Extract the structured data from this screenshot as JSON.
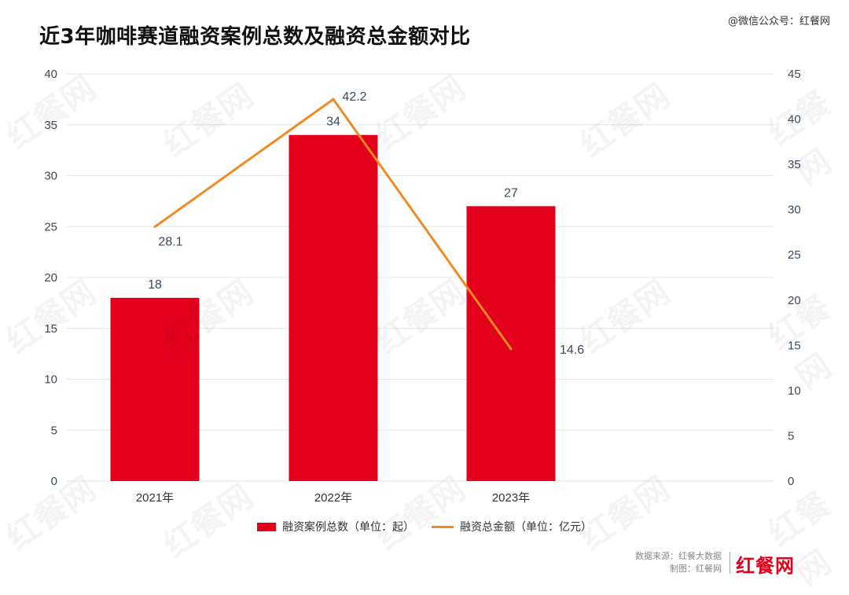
{
  "header": {
    "title": "近3年咖啡赛道融资案例总数及融资总金额对比",
    "source_tag": "@微信公众号：红餐网"
  },
  "footer": {
    "data_source": "数据来源：红餐大数据",
    "made_by": "制图：红餐网",
    "logo_text": "红餐网"
  },
  "watermark_text": "红餐网",
  "colors": {
    "bar": "#e3001b",
    "line": "#f08a24",
    "grid": "#e6e6e6",
    "axis_text": "#3a4a5c"
  },
  "chart_data": {
    "type": "bar",
    "title": "近3年咖啡赛道融资案例总数及融资总金额对比",
    "categories": [
      "2021年",
      "2022年",
      "2023年"
    ],
    "series": [
      {
        "name": "融资案例总数（单位：起）",
        "type": "bar",
        "axis": "left",
        "values": [
          18,
          34,
          27
        ]
      },
      {
        "name": "融资总金额（单位：亿元）",
        "type": "line",
        "axis": "right",
        "values": [
          28.1,
          42.2,
          14.6
        ]
      }
    ],
    "y_left": {
      "range": [
        0,
        40
      ],
      "ticks": [
        "0",
        "5",
        "10",
        "15",
        "20",
        "25",
        "30",
        "35",
        "40"
      ]
    },
    "y_right": {
      "range": [
        0,
        45
      ],
      "ticks": [
        "0",
        "5",
        "10",
        "15",
        "20",
        "25",
        "30",
        "35",
        "40",
        "45"
      ]
    },
    "grid": true,
    "legend_position": "bottom"
  }
}
